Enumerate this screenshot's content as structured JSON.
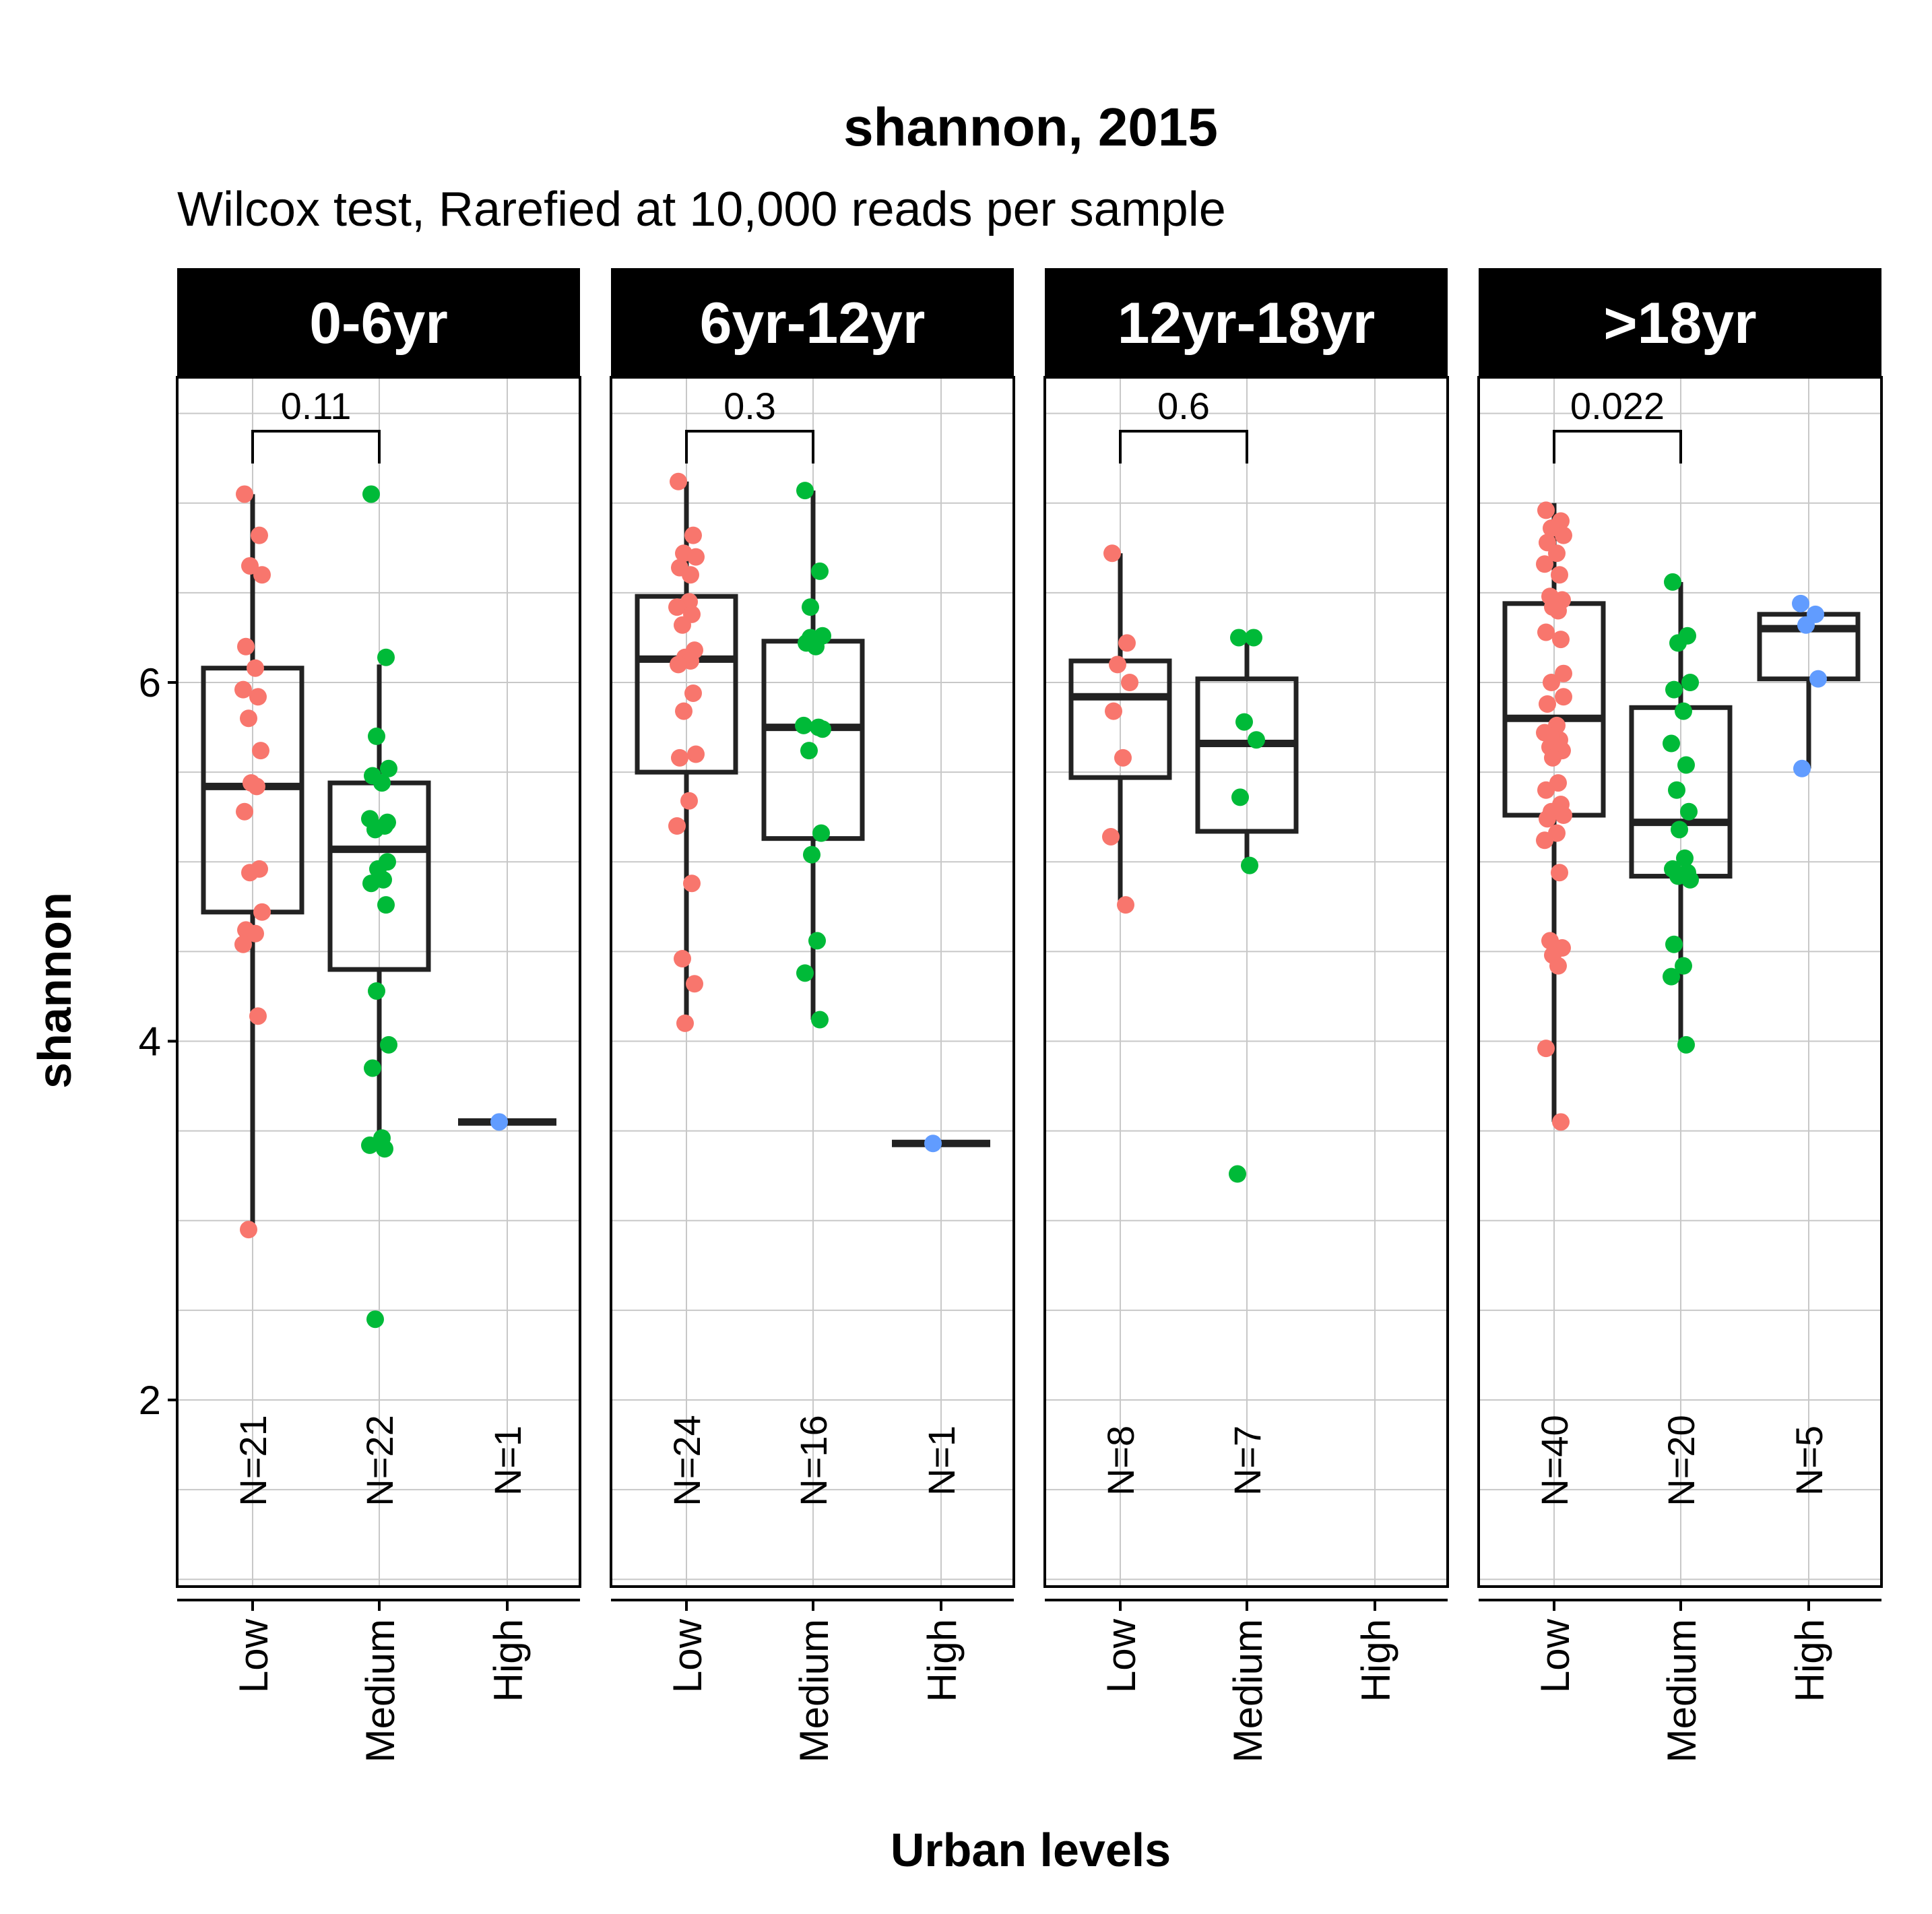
{
  "chart_data": {
    "type": "box",
    "title": "shannon, 2015",
    "subtitle": "Wilcox test, Rarefied at 10,000 reads per sample",
    "xlabel": "Urban levels",
    "ylabel": "shannon",
    "ylim": [
      1.0,
      7.8
    ],
    "yticks": [
      2,
      4,
      6
    ],
    "categories": [
      "Low",
      "Medium",
      "High"
    ],
    "colors": {
      "Low": "#F8766D",
      "Medium": "#00BA38",
      "High": "#619CFF"
    },
    "grid": true,
    "panels": [
      {
        "name": "0-6yr",
        "comparison": {
          "groups": [
            "Low",
            "Medium"
          ],
          "p": "0.11"
        },
        "groups": [
          {
            "level": "Low",
            "n_label": "N=21",
            "n": 21,
            "box": {
              "lower_whisker": 2.95,
              "q1": 4.72,
              "median": 5.42,
              "q3": 6.08,
              "upper_whisker": 7.05
            },
            "points": [
              7.05,
              6.82,
              6.65,
              6.6,
              6.2,
              6.08,
              5.96,
              5.92,
              5.8,
              5.62,
              5.44,
              5.42,
              5.28,
              4.96,
              4.94,
              4.72,
              4.62,
              4.6,
              4.54,
              4.14,
              2.95
            ]
          },
          {
            "level": "Medium",
            "n_label": "N=22",
            "n": 22,
            "box": {
              "lower_whisker": 3.4,
              "q1": 4.4,
              "median": 5.07,
              "q3": 5.44,
              "upper_whisker": 6.1
            },
            "points": [
              7.05,
              6.14,
              5.7,
              5.52,
              5.48,
              5.44,
              5.24,
              5.2,
              5.18,
              5.0,
              4.96,
              4.9,
              4.88,
              4.76,
              4.28,
              3.98,
              3.85,
              3.46,
              3.42,
              3.4,
              2.45,
              5.22
            ]
          },
          {
            "level": "High",
            "n_label": "N=1",
            "n": 1,
            "box": {
              "lower_whisker": 3.55,
              "q1": 3.55,
              "median": 3.55,
              "q3": 3.55,
              "upper_whisker": 3.55
            },
            "points": [
              3.55
            ]
          }
        ]
      },
      {
        "name": "6yr-12yr",
        "comparison": {
          "groups": [
            "Low",
            "Medium"
          ],
          "p": "0.3"
        },
        "groups": [
          {
            "level": "Low",
            "n_label": "N=24",
            "n": 24,
            "box": {
              "lower_whisker": 4.1,
              "q1": 5.5,
              "median": 6.13,
              "q3": 6.48,
              "upper_whisker": 7.12
            },
            "points": [
              7.12,
              6.82,
              6.72,
              6.7,
              6.64,
              6.45,
              6.42,
              6.38,
              6.32,
              6.18,
              6.14,
              6.12,
              6.1,
              5.94,
              5.84,
              5.6,
              5.58,
              5.34,
              5.2,
              4.88,
              4.46,
              4.32,
              4.1,
              6.6
            ]
          },
          {
            "level": "Medium",
            "n_label": "N=16",
            "n": 16,
            "box": {
              "lower_whisker": 4.12,
              "q1": 5.13,
              "median": 5.75,
              "q3": 6.23,
              "upper_whisker": 7.07
            },
            "points": [
              7.07,
              6.62,
              6.42,
              6.26,
              6.22,
              6.2,
              5.76,
              5.75,
              5.62,
              5.16,
              5.04,
              4.56,
              4.38,
              4.12,
              6.25,
              5.74
            ]
          },
          {
            "level": "High",
            "n_label": "N=1",
            "n": 1,
            "box": {
              "lower_whisker": 3.43,
              "q1": 3.43,
              "median": 3.43,
              "q3": 3.43,
              "upper_whisker": 3.43
            },
            "points": [
              3.43
            ]
          }
        ]
      },
      {
        "name": "12yr-18yr",
        "comparison": {
          "groups": [
            "Low",
            "Medium"
          ],
          "p": "0.6"
        },
        "groups": [
          {
            "level": "Low",
            "n_label": "N=8",
            "n": 8,
            "box": {
              "lower_whisker": 4.76,
              "q1": 5.47,
              "median": 5.92,
              "q3": 6.12,
              "upper_whisker": 6.72
            },
            "points": [
              6.72,
              6.22,
              6.1,
              6.0,
              5.84,
              5.58,
              5.14,
              4.76
            ]
          },
          {
            "level": "Medium",
            "n_label": "N=7",
            "n": 7,
            "box": {
              "lower_whisker": 4.98,
              "q1": 5.17,
              "median": 5.66,
              "q3": 6.02,
              "upper_whisker": 6.25
            },
            "points": [
              6.25,
              6.25,
              5.78,
              5.68,
              5.36,
              4.98,
              3.26
            ]
          },
          {
            "level": "High",
            "n_label": "",
            "n": 0,
            "box": null,
            "points": []
          }
        ]
      },
      {
        "name": ">18yr",
        "comparison": {
          "groups": [
            "Low",
            "Medium"
          ],
          "p": "0.022"
        },
        "groups": [
          {
            "level": "Low",
            "n_label": "N=40",
            "n": 40,
            "box": {
              "lower_whisker": 3.55,
              "q1": 5.26,
              "median": 5.8,
              "q3": 6.44,
              "upper_whisker": 7.0
            },
            "points": [
              6.96,
              6.9,
              6.86,
              6.82,
              6.78,
              6.72,
              6.66,
              6.6,
              6.48,
              6.46,
              6.42,
              6.4,
              6.28,
              6.24,
              6.0,
              5.92,
              5.88,
              5.76,
              5.72,
              5.68,
              5.64,
              5.62,
              5.58,
              5.44,
              5.4,
              5.32,
              5.28,
              5.26,
              5.24,
              5.16,
              5.12,
              4.94,
              4.56,
              4.52,
              4.48,
              4.42,
              3.96,
              3.55,
              5.7,
              6.05
            ]
          },
          {
            "level": "Medium",
            "n_label": "N=20",
            "n": 20,
            "box": {
              "lower_whisker": 3.98,
              "q1": 4.92,
              "median": 5.22,
              "q3": 5.86,
              "upper_whisker": 6.56
            },
            "points": [
              6.56,
              6.26,
              6.22,
              6.0,
              5.96,
              5.84,
              5.66,
              5.54,
              5.4,
              5.28,
              5.18,
              5.02,
              4.96,
              4.94,
              4.92,
              4.9,
              4.54,
              4.42,
              4.36,
              3.98
            ]
          },
          {
            "level": "High",
            "n_label": "N=5",
            "n": 5,
            "box": {
              "lower_whisker": 5.52,
              "q1": 6.02,
              "median": 6.3,
              "q3": 6.38,
              "upper_whisker": 6.38
            },
            "points": [
              6.44,
              6.38,
              6.32,
              6.02,
              5.52
            ]
          }
        ]
      }
    ]
  }
}
